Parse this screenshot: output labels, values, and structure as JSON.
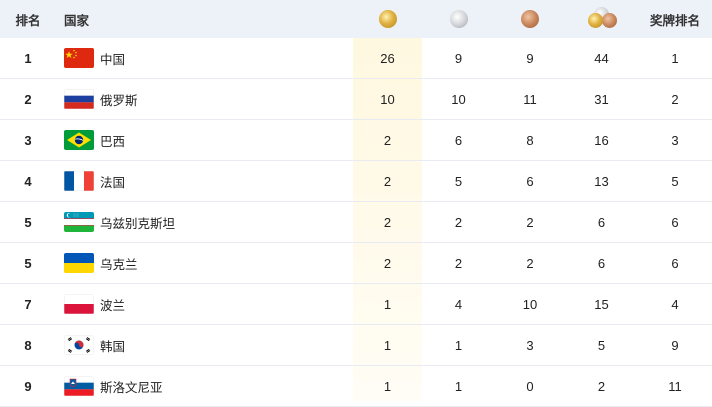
{
  "header": {
    "rank": "排名",
    "country": "国家",
    "gold_icon": "gold-medal-icon",
    "silver_icon": "silver-medal-icon",
    "bronze_icon": "bronze-medal-icon",
    "total_icon": "all-medals-icon",
    "medal_rank": "奖牌排名"
  },
  "colors": {
    "header_bg": "#edf1f8",
    "gold_column_highlight": "#fff8de",
    "row_divider": "#e8ecf2"
  },
  "rows": [
    {
      "rank": "1",
      "country": "中国",
      "flag": "china-flag",
      "gold": "26",
      "silver": "9",
      "bronze": "9",
      "total": "44",
      "medal_rank": "1"
    },
    {
      "rank": "2",
      "country": "俄罗斯",
      "flag": "russia-flag",
      "gold": "10",
      "silver": "10",
      "bronze": "11",
      "total": "31",
      "medal_rank": "2"
    },
    {
      "rank": "3",
      "country": "巴西",
      "flag": "brazil-flag",
      "gold": "2",
      "silver": "6",
      "bronze": "8",
      "total": "16",
      "medal_rank": "3"
    },
    {
      "rank": "4",
      "country": "法国",
      "flag": "france-flag",
      "gold": "2",
      "silver": "5",
      "bronze": "6",
      "total": "13",
      "medal_rank": "5"
    },
    {
      "rank": "5",
      "country": "乌兹别克斯坦",
      "flag": "uzbekistan-flag",
      "gold": "2",
      "silver": "2",
      "bronze": "2",
      "total": "6",
      "medal_rank": "6"
    },
    {
      "rank": "5",
      "country": "乌克兰",
      "flag": "ukraine-flag",
      "gold": "2",
      "silver": "2",
      "bronze": "2",
      "total": "6",
      "medal_rank": "6"
    },
    {
      "rank": "7",
      "country": "波兰",
      "flag": "poland-flag",
      "gold": "1",
      "silver": "4",
      "bronze": "10",
      "total": "15",
      "medal_rank": "4"
    },
    {
      "rank": "8",
      "country": "韩国",
      "flag": "south-korea-flag",
      "gold": "1",
      "silver": "1",
      "bronze": "3",
      "total": "5",
      "medal_rank": "9"
    },
    {
      "rank": "9",
      "country": "斯洛文尼亚",
      "flag": "slovenia-flag",
      "gold": "1",
      "silver": "1",
      "bronze": "0",
      "total": "2",
      "medal_rank": "11"
    }
  ]
}
